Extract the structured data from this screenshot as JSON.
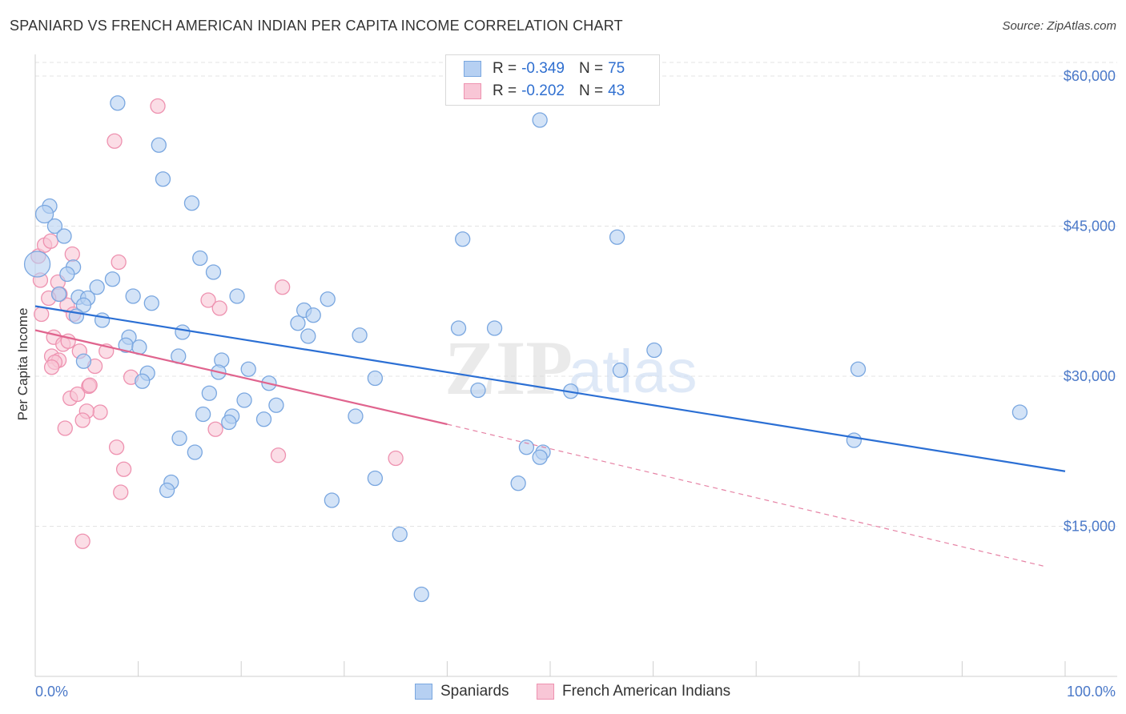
{
  "title": "SPANIARD VS FRENCH AMERICAN INDIAN PER CAPITA INCOME CORRELATION CHART",
  "source": "Source: ZipAtlas.com",
  "watermark": {
    "zip": "ZIP",
    "atlas": "atlas"
  },
  "legend": {
    "r_label": "R = ",
    "n_label": "N = ",
    "rows": [
      {
        "r": "-0.349",
        "n": "75"
      },
      {
        "r": "-0.202",
        "n": "43"
      }
    ]
  },
  "colors": {
    "blue_fill": "#b6d0f2",
    "blue_stroke": "#7aa7e0",
    "blue_line": "#2b6fd4",
    "pink_fill": "#f8c6d6",
    "pink_stroke": "#ee92b0",
    "pink_line": "#e0648e",
    "grid": "#e3e3e3"
  },
  "chart_data": {
    "type": "scatter",
    "title": "SPANIARD VS FRENCH AMERICAN INDIAN PER CAPITA INCOME CORRELATION CHART",
    "xlabel": "",
    "ylabel": "Per Capita Income",
    "xlim": [
      0,
      100
    ],
    "ylim": [
      0,
      62000
    ],
    "x_tick_labels": [
      "0.0%",
      "100.0%"
    ],
    "y_ticks": [
      15000,
      30000,
      45000,
      60000
    ],
    "y_tick_labels": [
      "$15,000",
      "$30,000",
      "$45,000",
      "$60,000"
    ],
    "grid": true,
    "legend_position": "top-center",
    "series": [
      {
        "name": "Spaniards",
        "color": "#b6d0f2",
        "r": -0.349,
        "n": 75,
        "trend": {
          "x0": 0,
          "y0": 37000,
          "x1": 100,
          "y1": 20500,
          "dashed_to": 100
        },
        "points": [
          [
            8.0,
            57300
          ],
          [
            12.0,
            53100
          ],
          [
            12.4,
            49700
          ],
          [
            15.2,
            47300
          ],
          [
            1.4,
            47000
          ],
          [
            0.9,
            46200
          ],
          [
            1.9,
            45000
          ],
          [
            0.2,
            41200
          ],
          [
            16.0,
            41800
          ],
          [
            17.3,
            40400
          ],
          [
            3.7,
            40900
          ],
          [
            3.1,
            40200
          ],
          [
            7.5,
            39700
          ],
          [
            6.0,
            38900
          ],
          [
            2.3,
            38200
          ],
          [
            4.2,
            37900
          ],
          [
            5.1,
            37800
          ],
          [
            4.7,
            37100
          ],
          [
            9.5,
            38000
          ],
          [
            11.3,
            37300
          ],
          [
            19.6,
            38000
          ],
          [
            26.1,
            36600
          ],
          [
            25.5,
            35300
          ],
          [
            27.0,
            36100
          ],
          [
            26.5,
            34000
          ],
          [
            28.4,
            37700
          ],
          [
            14.3,
            34400
          ],
          [
            9.1,
            33900
          ],
          [
            8.8,
            33100
          ],
          [
            10.1,
            32900
          ],
          [
            13.9,
            32000
          ],
          [
            4.7,
            31500
          ],
          [
            18.1,
            31600
          ],
          [
            17.8,
            30400
          ],
          [
            20.7,
            30700
          ],
          [
            10.9,
            30300
          ],
          [
            10.4,
            29500
          ],
          [
            22.7,
            29300
          ],
          [
            16.9,
            28300
          ],
          [
            20.3,
            27600
          ],
          [
            23.4,
            27100
          ],
          [
            16.3,
            26200
          ],
          [
            19.1,
            26000
          ],
          [
            18.8,
            25400
          ],
          [
            22.2,
            25700
          ],
          [
            31.5,
            34100
          ],
          [
            33.0,
            29800
          ],
          [
            31.1,
            26000
          ],
          [
            41.1,
            34800
          ],
          [
            44.6,
            34800
          ],
          [
            43.0,
            28600
          ],
          [
            52.0,
            28500
          ],
          [
            35.4,
            14200
          ],
          [
            37.5,
            8200
          ],
          [
            14.0,
            23800
          ],
          [
            15.5,
            22400
          ],
          [
            13.2,
            19400
          ],
          [
            12.8,
            18600
          ],
          [
            33.0,
            19800
          ],
          [
            28.8,
            17600
          ],
          [
            47.7,
            22900
          ],
          [
            49.3,
            22400
          ],
          [
            49.0,
            21900
          ],
          [
            46.9,
            19300
          ],
          [
            41.5,
            43700
          ],
          [
            56.5,
            43900
          ],
          [
            49.0,
            55600
          ],
          [
            56.8,
            30600
          ],
          [
            60.1,
            32600
          ],
          [
            79.5,
            23600
          ],
          [
            79.9,
            30700
          ],
          [
            95.6,
            26400
          ],
          [
            4.0,
            36000
          ],
          [
            6.5,
            35600
          ],
          [
            2.8,
            44000
          ]
        ]
      },
      {
        "name": "French American Indians",
        "color": "#f8c6d6",
        "r": -0.202,
        "n": 43,
        "trend": {
          "x0": 0,
          "y0": 34600,
          "x1": 40,
          "y1": 25200,
          "dashed_to": 98,
          "dashed_y1": 11000
        },
        "points": [
          [
            11.9,
            57000
          ],
          [
            7.7,
            53500
          ],
          [
            0.3,
            42000
          ],
          [
            0.9,
            43100
          ],
          [
            1.5,
            43500
          ],
          [
            3.6,
            42200
          ],
          [
            8.1,
            41400
          ],
          [
            0.5,
            39600
          ],
          [
            2.2,
            39400
          ],
          [
            2.4,
            38200
          ],
          [
            1.3,
            37800
          ],
          [
            3.1,
            37100
          ],
          [
            3.7,
            36200
          ],
          [
            0.6,
            36200
          ],
          [
            16.8,
            37600
          ],
          [
            17.9,
            36800
          ],
          [
            24.0,
            38900
          ],
          [
            1.8,
            33900
          ],
          [
            2.7,
            33200
          ],
          [
            3.2,
            33500
          ],
          [
            4.3,
            32500
          ],
          [
            6.9,
            32500
          ],
          [
            1.6,
            32000
          ],
          [
            2.3,
            31600
          ],
          [
            1.9,
            31400
          ],
          [
            5.8,
            31000
          ],
          [
            1.6,
            30900
          ],
          [
            9.3,
            29900
          ],
          [
            5.2,
            29000
          ],
          [
            3.4,
            27800
          ],
          [
            4.1,
            28200
          ],
          [
            6.3,
            26400
          ],
          [
            5.0,
            26500
          ],
          [
            4.6,
            25600
          ],
          [
            2.9,
            24800
          ],
          [
            17.5,
            24700
          ],
          [
            7.9,
            22900
          ],
          [
            23.6,
            22100
          ],
          [
            35.0,
            21800
          ],
          [
            8.6,
            20700
          ],
          [
            8.3,
            18400
          ],
          [
            4.6,
            13500
          ],
          [
            5.3,
            29100
          ]
        ]
      }
    ]
  },
  "bottom_legend": [
    "Spaniards",
    "French American Indians"
  ]
}
